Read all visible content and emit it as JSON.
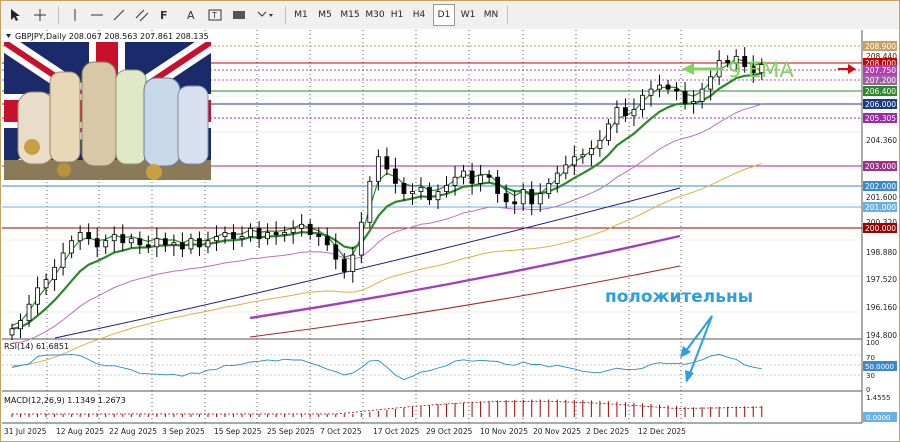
{
  "toolbar": {
    "timeframes": [
      "M1",
      "M5",
      "M15",
      "M30",
      "H1",
      "H4",
      "D1",
      "W1",
      "MN"
    ],
    "active_timeframe": "D1"
  },
  "chart_header": "GBPJPY,Daily  208.067 208.563 207.861 208.135",
  "annotations": {
    "ema_label": "9 EMA",
    "ema_label_color": "#7dd65a",
    "note": "положительны",
    "note_color": "#2aa0e0"
  },
  "price_axis": {
    "ticks": [
      "208.440",
      "204.360",
      "201.600",
      "200.320",
      "198.880",
      "197.520",
      "196.160",
      "194.800"
    ]
  },
  "price_levels": [
    {
      "label": "208.900",
      "color": "#c8a060"
    },
    {
      "label": "208.000",
      "color": "#cc0000"
    },
    {
      "label": "207.750",
      "color": "#b040b0"
    },
    {
      "label": "207.200",
      "color": "#a060a0"
    },
    {
      "label": "206.400",
      "color": "#2a8a2a"
    },
    {
      "label": "206.000",
      "color": "#1a3a8a"
    },
    {
      "label": "205.305",
      "color": "#9a2aa8"
    },
    {
      "label": "203.000",
      "color": "#a03080"
    },
    {
      "label": "202.000",
      "color": "#3a8ad0"
    },
    {
      "label": "201.000",
      "color": "#6ab0e8"
    },
    {
      "label": "200.000",
      "color": "#a00000"
    }
  ],
  "date_axis": [
    "31 Jul 2025",
    "12 Aug 2025",
    "22 Aug 2025",
    "3 Sep 2025",
    "15 Sep 2025",
    "25 Sep 2025",
    "7 Oct 2025",
    "17 Oct 2025",
    "29 Oct 2025",
    "10 Nov 2025",
    "20 Nov 2025",
    "2 Dec 2025",
    "12 Dec 2025"
  ],
  "rsi": {
    "label": "RSI(14) 61.6851",
    "ticks": [
      "100",
      "70",
      "50.0000",
      "30",
      "0"
    ]
  },
  "macd": {
    "label": "MACD(12,26,9) 1.1349 1.2673",
    "ticks": [
      "1.4555",
      "0.0000"
    ]
  },
  "chart_data": {
    "type": "candlestick",
    "symbol": "GBPJPY",
    "timeframe": "Daily",
    "ohlc_last": {
      "open": 208.067,
      "high": 208.563,
      "low": 207.861,
      "close": 208.135
    },
    "ylim": [
      194.8,
      209.2
    ],
    "close": [
      195.2,
      195.6,
      196.4,
      197.2,
      197.6,
      198.2,
      198.9,
      199.5,
      199.9,
      199.6,
      199.2,
      199.5,
      199.8,
      199.4,
      199.6,
      199.3,
      199.2,
      199.6,
      199.3,
      199.4,
      199.1,
      199.6,
      199.2,
      199.5,
      199.7,
      199.9,
      199.6,
      199.7,
      200.1,
      199.6,
      199.9,
      199.8,
      199.9,
      200.1,
      200.3,
      199.8,
      199.7,
      199.3,
      198.6,
      198.0,
      198.8,
      200.4,
      202.4,
      203.6,
      203.0,
      202.3,
      201.8,
      201.9,
      202.1,
      201.5,
      201.9,
      202.2,
      202.6,
      202.9,
      202.3,
      202.7,
      202.6,
      201.8,
      201.4,
      201.3,
      202.0,
      201.3,
      201.8,
      202.3,
      202.8,
      203.2,
      203.6,
      203.7,
      204.0,
      204.4,
      205.2,
      206.0,
      205.6,
      205.9,
      206.6,
      206.9,
      207.1,
      206.9,
      206.8,
      206.2,
      206.3,
      206.9,
      207.5,
      208.3,
      208.2,
      208.5,
      208.0,
      207.7,
      208.1
    ],
    "ema9_reading": "9 EMA"
  }
}
